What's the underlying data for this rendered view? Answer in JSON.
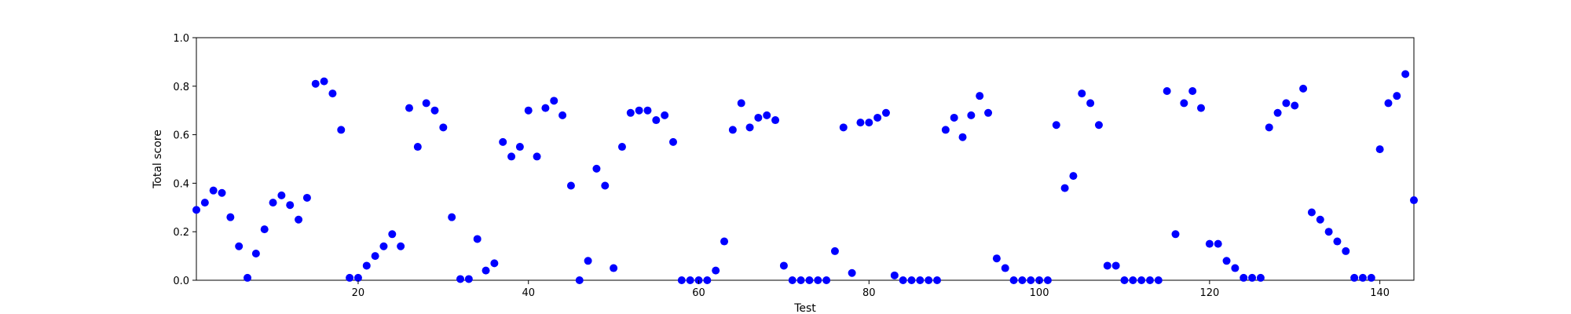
{
  "chart_data": {
    "type": "scatter",
    "title": "",
    "xlabel": "Test",
    "ylabel": "Total score",
    "xlim": [
      1,
      144
    ],
    "ylim": [
      0.0,
      1.0
    ],
    "xticks": [
      20,
      40,
      60,
      80,
      100,
      120,
      140
    ],
    "xtick_labels": [
      "20",
      "40",
      "60",
      "80",
      "100",
      "120",
      "140"
    ],
    "yticks": [
      0.0,
      0.2,
      0.4,
      0.6,
      0.8,
      1.0
    ],
    "ytick_labels": [
      "0.0",
      "0.2",
      "0.4",
      "0.6",
      "0.8",
      "1.0"
    ],
    "grid": false,
    "marker_color": "#0000ff",
    "series": [
      {
        "x": [
          1,
          2,
          3,
          4,
          5,
          6,
          7,
          8,
          9,
          10,
          11,
          12,
          13,
          14,
          15,
          16,
          17,
          18,
          19,
          20,
          21,
          22,
          23,
          24,
          25,
          26,
          27,
          28,
          29,
          30,
          31,
          32,
          33,
          34,
          35,
          36,
          37,
          38,
          39,
          40,
          41,
          42,
          43,
          44,
          45,
          46,
          47,
          48,
          49,
          50,
          51,
          52,
          53,
          54,
          55,
          56,
          57,
          58,
          59,
          60,
          61,
          62,
          63,
          64,
          65,
          66,
          67,
          68,
          69,
          70,
          71,
          72,
          73,
          74,
          75,
          76,
          77,
          78,
          79,
          80,
          81,
          82,
          83,
          84,
          85,
          86,
          87,
          88,
          89,
          90,
          91,
          92,
          93,
          94,
          95,
          96,
          97,
          98,
          99,
          100,
          101,
          102,
          103,
          104,
          105,
          106,
          107,
          108,
          109,
          110,
          111,
          112,
          113,
          114,
          115,
          116,
          117,
          118,
          119,
          120,
          121,
          122,
          123,
          124,
          125,
          126,
          127,
          128,
          129,
          130,
          131,
          132,
          133,
          134,
          135,
          136,
          137,
          138,
          139,
          140,
          141,
          142,
          143,
          144
        ],
        "y": [
          0.29,
          0.32,
          0.37,
          0.36,
          0.26,
          0.14,
          0.01,
          0.11,
          0.21,
          0.32,
          0.35,
          0.31,
          0.25,
          0.34,
          0.81,
          0.82,
          0.77,
          0.62,
          0.01,
          0.01,
          0.06,
          0.1,
          0.14,
          0.19,
          0.14,
          0.71,
          0.55,
          0.73,
          0.7,
          0.63,
          0.26,
          0.005,
          0.005,
          0.17,
          0.04,
          0.07,
          0.57,
          0.51,
          0.55,
          0.7,
          0.51,
          0.71,
          0.74,
          0.68,
          0.39,
          0.0,
          0.08,
          0.46,
          0.39,
          0.05,
          0.55,
          0.69,
          0.7,
          0.7,
          0.66,
          0.68,
          0.57,
          0.0,
          0.0,
          0.0,
          0.0,
          0.04,
          0.16,
          0.62,
          0.73,
          0.63,
          0.67,
          0.68,
          0.66,
          0.06,
          0.0,
          0.0,
          0.0,
          0.0,
          0.0,
          0.12,
          0.63,
          0.03,
          0.65,
          0.65,
          0.67,
          0.69,
          0.02,
          0.0,
          0.0,
          0.0,
          0.0,
          0.0,
          0.62,
          0.67,
          0.59,
          0.68,
          0.76,
          0.69,
          0.09,
          0.05,
          0.0,
          0.0,
          0.0,
          0.0,
          0.0,
          0.64,
          0.38,
          0.43,
          0.77,
          0.73,
          0.64,
          0.06,
          0.06,
          0.0,
          0.0,
          0.0,
          0.0,
          0.0,
          0.78,
          0.19,
          0.73,
          0.78,
          0.71,
          0.15,
          0.15,
          0.08,
          0.05,
          0.01,
          0.01,
          0.01,
          0.63,
          0.69,
          0.73,
          0.72,
          0.79,
          0.28,
          0.25,
          0.2,
          0.16,
          0.12,
          0.01,
          0.01,
          0.01,
          0.54,
          0.73,
          0.76,
          0.85,
          0.33
        ]
      }
    ]
  }
}
